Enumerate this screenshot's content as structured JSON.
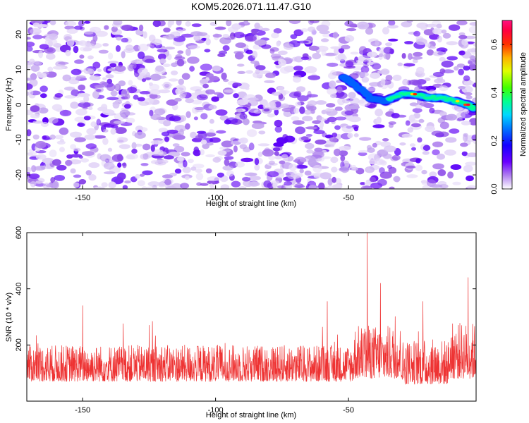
{
  "title": "KOM5.2026.071.11.47.G10",
  "chart_data": [
    {
      "type": "heatmap",
      "title": "KOM5.2026.071.11.47.G10",
      "xlabel": "Height of straight line (km)",
      "ylabel": "Frequency (Hz)",
      "xlim": [
        -171,
        -2
      ],
      "ylim": [
        -24,
        24
      ],
      "x_ticks": [
        -150,
        -100,
        -50
      ],
      "y_ticks": [
        -20,
        -10,
        0,
        10,
        20
      ],
      "colorbar": {
        "label": "Normalized spectral amplitude",
        "range": [
          0.0,
          0.7
        ],
        "ticks": [
          0.0,
          0.2,
          0.4,
          0.6
        ],
        "colormap": [
          "#ffffff",
          "#c7a8f0",
          "#9a4cf0",
          "#6a00ff",
          "#2000ff",
          "#0050ff",
          "#00c8ff",
          "#00ff80",
          "#80ff00",
          "#ffff00",
          "#ff8000",
          "#ff0000",
          "#ff0080"
        ]
      },
      "features": [
        {
          "description": "signal trace",
          "x": [
            -52,
            -48,
            -42,
            -36,
            -30,
            -25,
            -20,
            -15,
            -10,
            -5,
            -3
          ],
          "y": [
            8,
            6,
            2,
            1,
            3,
            3,
            2,
            2,
            1,
            0,
            -1
          ],
          "peak": 0.68
        }
      ]
    },
    {
      "type": "line",
      "xlabel": "Height of straight line (km)",
      "ylabel": "SNR (10 * v/v)",
      "xlim": [
        -171,
        -2
      ],
      "ylim": [
        0,
        600
      ],
      "x_ticks": [
        -150,
        -100,
        -50
      ],
      "y_ticks": [
        200,
        400,
        600
      ],
      "color": "#ee3333",
      "series": [
        {
          "name": "SNR",
          "summary": "noise ~50-230 with spikes",
          "spikes": [
            {
              "x": -150,
              "y": 340
            },
            {
              "x": -125,
              "y": 270
            },
            {
              "x": -58,
              "y": 355
            },
            {
              "x": -43,
              "y": 600
            },
            {
              "x": -38,
              "y": 420
            },
            {
              "x": -22,
              "y": 355
            },
            {
              "x": -5,
              "y": 440
            }
          ]
        }
      ]
    }
  ]
}
